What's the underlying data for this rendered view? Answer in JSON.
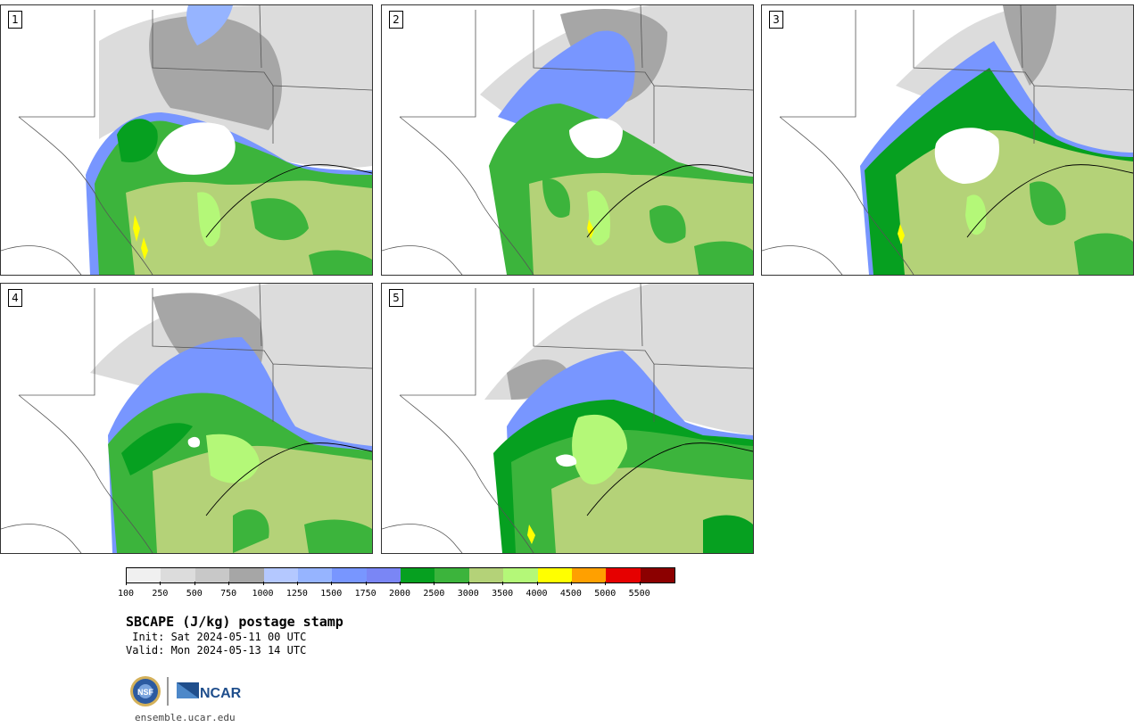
{
  "title": "SBCAPE (J/kg) postage stamp",
  "init_line": " Init: Sat 2024-05-11 00 UTC",
  "valid_line": "Valid: Mon 2024-05-13 14 UTC",
  "url": "ensemble.ucar.edu",
  "logo_nsf_text": "NSF",
  "logo_ncar_text": "NCAR",
  "panels": [
    {
      "label": "1"
    },
    {
      "label": "2"
    },
    {
      "label": "3"
    },
    {
      "label": "4"
    },
    {
      "label": "5"
    }
  ],
  "colorbar": {
    "ticks": [
      "100",
      "250",
      "500",
      "750",
      "1000",
      "1250",
      "1500",
      "1750",
      "2000",
      "2500",
      "3000",
      "3500",
      "4000",
      "4500",
      "5000",
      "5500"
    ],
    "colors": [
      "#f0f0f0",
      "#dcdcdc",
      "#c8c8c8",
      "#a6a6a6",
      "#b4c8ff",
      "#96b4ff",
      "#7896ff",
      "#7a86f5",
      "#06a020",
      "#3cb43c",
      "#b4d278",
      "#b4f878",
      "#ffff00",
      "#ffa000",
      "#e60000",
      "#8c0000"
    ]
  },
  "colors": {
    "state_border": "#555555",
    "coast": "#000000"
  }
}
